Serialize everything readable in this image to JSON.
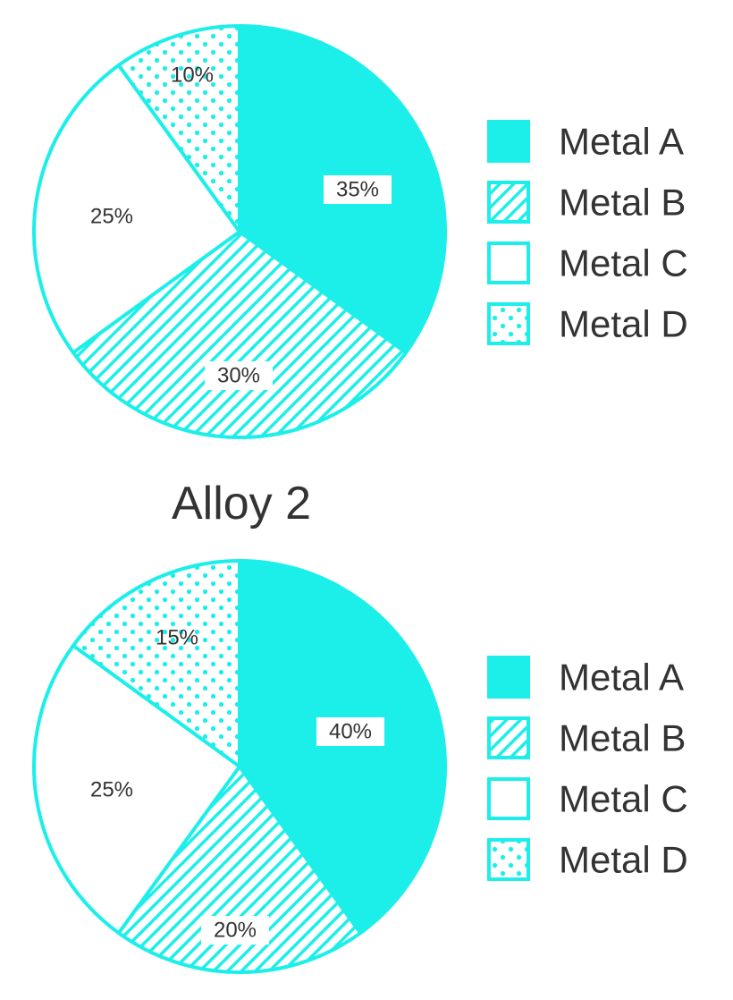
{
  "colors": {
    "accent": "#1cefe9",
    "text": "#333333",
    "background": "#ffffff"
  },
  "legend": {
    "placement": "right",
    "entries": [
      {
        "label": "Metal A",
        "pattern": "solid"
      },
      {
        "label": "Metal B",
        "pattern": "diagonal-hatch"
      },
      {
        "label": "Metal C",
        "pattern": "empty"
      },
      {
        "label": "Metal D",
        "pattern": "dots"
      }
    ]
  },
  "chart_data": [
    {
      "type": "pie",
      "title": "",
      "categories": [
        "Metal A",
        "Metal B",
        "Metal C",
        "Metal D"
      ],
      "values": [
        35,
        30,
        25,
        10
      ],
      "labels": [
        "35%",
        "30%",
        "25%",
        "10%"
      ],
      "unit": "%"
    },
    {
      "type": "pie",
      "title": "Alloy 2",
      "categories": [
        "Metal A",
        "Metal B",
        "Metal C",
        "Metal D"
      ],
      "values": [
        40,
        20,
        25,
        15
      ],
      "labels": [
        "40%",
        "20%",
        "25%",
        "15%"
      ],
      "unit": "%"
    }
  ]
}
